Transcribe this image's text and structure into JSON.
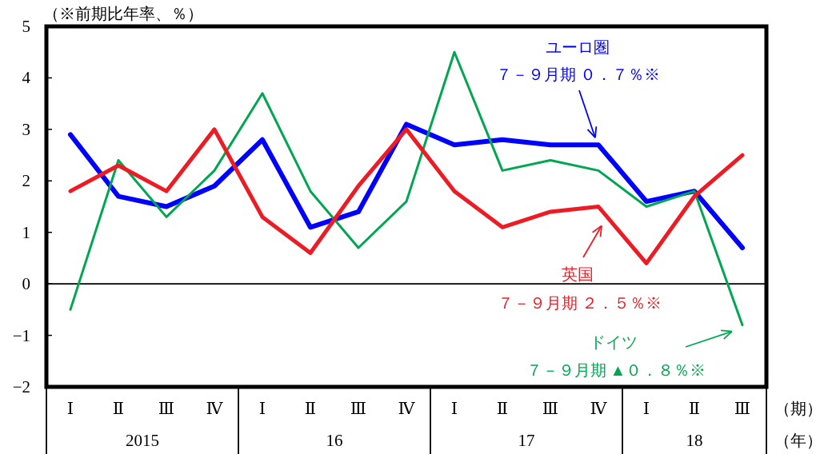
{
  "chart_data": {
    "type": "line",
    "ylabel": "（※前期比年率、％）",
    "xlabel": "（期）",
    "categories": [
      "Ⅰ",
      "Ⅱ",
      "Ⅲ",
      "Ⅳ",
      "Ⅰ",
      "Ⅱ",
      "Ⅲ",
      "Ⅳ",
      "Ⅰ",
      "Ⅱ",
      "Ⅲ",
      "Ⅳ",
      "Ⅰ",
      "Ⅱ",
      "Ⅲ"
    ],
    "series": [
      {
        "name": "ユーロ圏",
        "color": "#0000ff",
        "values": [
          2.9,
          1.7,
          1.5,
          1.9,
          2.8,
          1.1,
          1.4,
          3.1,
          2.7,
          2.8,
          2.7,
          2.7,
          1.6,
          1.8,
          0.7
        ]
      },
      {
        "name": "英国",
        "color": "#ed1c24",
        "values": [
          1.8,
          2.3,
          1.8,
          3.0,
          1.3,
          0.6,
          1.9,
          3.0,
          1.8,
          1.1,
          1.4,
          1.5,
          0.4,
          1.7,
          2.5
        ]
      },
      {
        "name": "ドイツ",
        "color": "#00a651",
        "values": [
          -0.5,
          2.4,
          1.3,
          2.2,
          3.7,
          1.8,
          0.7,
          1.6,
          4.5,
          2.2,
          2.4,
          2.2,
          1.5,
          1.8,
          -0.8
        ]
      }
    ],
    "ylim": [
      -2,
      5
    ],
    "yticks": [
      {
        "value": -2,
        "label": "−2"
      },
      {
        "value": -1,
        "label": "−1"
      },
      0,
      1,
      2,
      3,
      4,
      5
    ],
    "ref_lines": [
      {
        "axis": "y",
        "value": 0,
        "color": "#000000"
      }
    ],
    "annotations": [
      "７－９月期 ０．７％※",
      "７－９月期 ２．５％※",
      "７－９月期 ▲０．８％※",
      "2015",
      "16",
      "17",
      "18",
      "（年）"
    ]
  }
}
